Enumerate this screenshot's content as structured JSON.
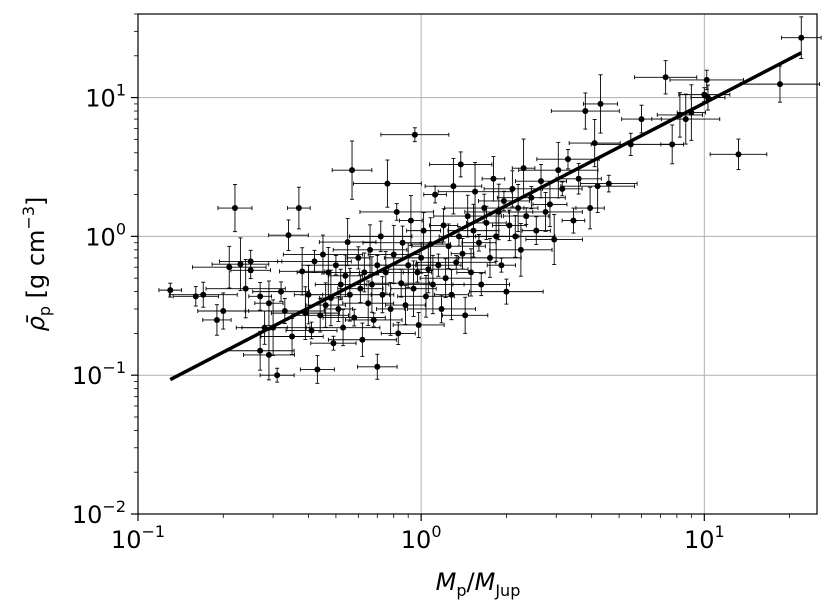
{
  "chart_data": {
    "type": "scatter",
    "title": "",
    "xlabel": {
      "main": "M",
      "sub": "p",
      "sep": "/",
      "main2": "M",
      "sub2": "Jup"
    },
    "ylabel": {
      "sym": "ρ̄",
      "sub": "p",
      "unit_open": " [g cm",
      "unit_sup": "−3",
      "unit_close": "]"
    },
    "xscale": "log",
    "yscale": "log",
    "xlim": [
      0.1,
      25
    ],
    "ylim": [
      0.01,
      40
    ],
    "grid": true,
    "x_ticks": [
      {
        "value": 0.1,
        "base": "10",
        "exp": "−1"
      },
      {
        "value": 1,
        "base": "10",
        "exp": "0"
      },
      {
        "value": 10,
        "base": "10",
        "exp": "1"
      }
    ],
    "y_ticks": [
      {
        "value": 0.01,
        "base": "10",
        "exp": "−2"
      },
      {
        "value": 0.1,
        "base": "10",
        "exp": "−1"
      },
      {
        "value": 1,
        "base": "10",
        "exp": "0"
      },
      {
        "value": 10,
        "base": "10",
        "exp": "1"
      }
    ],
    "fit_line": {
      "x": [
        0.13,
        22
      ],
      "y": [
        0.093,
        21
      ]
    },
    "points": [
      [
        0.13,
        0.41
      ],
      [
        0.16,
        0.37
      ],
      [
        0.17,
        0.38
      ],
      [
        0.19,
        0.25
      ],
      [
        0.2,
        0.29
      ],
      [
        0.21,
        0.6
      ],
      [
        0.22,
        1.6
      ],
      [
        0.23,
        0.63
      ],
      [
        0.24,
        0.42
      ],
      [
        0.25,
        0.57
      ],
      [
        0.25,
        0.66
      ],
      [
        0.27,
        0.37
      ],
      [
        0.28,
        0.22
      ],
      [
        0.27,
        0.15
      ],
      [
        0.29,
        0.33
      ],
      [
        0.29,
        0.14
      ],
      [
        0.3,
        0.22
      ],
      [
        0.31,
        0.1
      ],
      [
        0.32,
        0.4
      ],
      [
        0.33,
        0.29
      ],
      [
        0.34,
        1.02
      ],
      [
        0.35,
        0.19
      ],
      [
        0.37,
        1.6
      ],
      [
        0.38,
        0.56
      ],
      [
        0.39,
        0.28
      ],
      [
        0.4,
        0.38
      ],
      [
        0.41,
        0.21
      ],
      [
        0.42,
        0.66
      ],
      [
        0.43,
        0.11
      ],
      [
        0.44,
        0.27
      ],
      [
        0.45,
        0.74
      ],
      [
        0.46,
        0.32
      ],
      [
        0.47,
        0.55
      ],
      [
        0.48,
        0.36
      ],
      [
        0.49,
        0.17
      ],
      [
        0.5,
        0.62
      ],
      [
        0.51,
        0.3
      ],
      [
        0.52,
        0.45
      ],
      [
        0.53,
        0.22
      ],
      [
        0.54,
        0.52
      ],
      [
        0.55,
        0.91
      ],
      [
        0.56,
        0.38
      ],
      [
        0.57,
        3.0
      ],
      [
        0.58,
        0.26
      ],
      [
        0.6,
        0.7
      ],
      [
        0.61,
        0.42
      ],
      [
        0.62,
        0.18
      ],
      [
        0.63,
        0.55
      ],
      [
        0.65,
        0.33
      ],
      [
        0.66,
        0.8
      ],
      [
        0.67,
        0.45
      ],
      [
        0.68,
        0.25
      ],
      [
        0.7,
        0.62
      ],
      [
        0.7,
        0.115
      ],
      [
        0.72,
        1.0
      ],
      [
        0.73,
        0.38
      ],
      [
        0.75,
        0.55
      ],
      [
        0.76,
        2.4
      ],
      [
        0.78,
        0.3
      ],
      [
        0.8,
        0.74
      ],
      [
        0.82,
        1.5
      ],
      [
        0.83,
        0.2
      ],
      [
        0.85,
        0.46
      ],
      [
        0.86,
        0.9
      ],
      [
        0.88,
        0.32
      ],
      [
        0.9,
        0.62
      ],
      [
        0.92,
        1.3
      ],
      [
        0.94,
        0.42
      ],
      [
        0.95,
        5.4
      ],
      [
        0.97,
        0.55
      ],
      [
        0.98,
        0.23
      ],
      [
        1.0,
        0.7
      ],
      [
        1.02,
        1.1
      ],
      [
        1.04,
        0.37
      ],
      [
        1.06,
        0.58
      ],
      [
        1.08,
        0.88
      ],
      [
        1.1,
        0.45
      ],
      [
        1.12,
        2.0
      ],
      [
        1.15,
        0.62
      ],
      [
        1.18,
        0.3
      ],
      [
        1.2,
        1.2
      ],
      [
        1.22,
        0.5
      ],
      [
        1.25,
        0.85
      ],
      [
        1.28,
        0.38
      ],
      [
        1.3,
        2.3
      ],
      [
        1.33,
        0.65
      ],
      [
        1.36,
        1.0
      ],
      [
        1.38,
        3.3
      ],
      [
        1.4,
        0.75
      ],
      [
        1.43,
        0.27
      ],
      [
        1.46,
        1.4
      ],
      [
        1.5,
        0.55
      ],
      [
        1.53,
        1.1
      ],
      [
        1.55,
        2.1
      ],
      [
        1.6,
        0.9
      ],
      [
        1.63,
        0.45
      ],
      [
        1.67,
        1.6
      ],
      [
        1.7,
        1.25
      ],
      [
        1.75,
        0.7
      ],
      [
        1.8,
        2.6
      ],
      [
        1.84,
        1.0
      ],
      [
        1.88,
        1.5
      ],
      [
        1.92,
        0.62
      ],
      [
        1.96,
        1.8
      ],
      [
        2.0,
        0.4
      ],
      [
        2.05,
        1.2
      ],
      [
        2.1,
        2.2
      ],
      [
        2.15,
        1.0
      ],
      [
        2.2,
        1.6
      ],
      [
        2.25,
        0.8
      ],
      [
        2.3,
        3.1
      ],
      [
        2.35,
        1.4
      ],
      [
        2.45,
        1.9
      ],
      [
        2.55,
        1.1
      ],
      [
        2.65,
        2.5
      ],
      [
        2.75,
        1.5
      ],
      [
        2.85,
        1.7
      ],
      [
        2.95,
        0.95
      ],
      [
        3.05,
        3.0
      ],
      [
        3.15,
        2.2
      ],
      [
        3.3,
        3.6
      ],
      [
        3.45,
        1.3
      ],
      [
        3.6,
        2.6
      ],
      [
        3.8,
        8.0
      ],
      [
        3.95,
        1.6
      ],
      [
        4.1,
        4.7
      ],
      [
        4.2,
        2.3
      ],
      [
        4.3,
        9.0
      ],
      [
        4.6,
        2.4
      ],
      [
        5.5,
        4.6
      ],
      [
        6.0,
        7.0
      ],
      [
        7.3,
        14
      ],
      [
        7.7,
        4.6
      ],
      [
        8.2,
        7.5
      ],
      [
        8.6,
        7.0
      ],
      [
        9.0,
        7.8
      ],
      [
        10.0,
        10.5
      ],
      [
        10.2,
        13.4
      ],
      [
        10.3,
        10.0
      ],
      [
        13.2,
        3.9
      ],
      [
        18.5,
        12.5
      ],
      [
        22.0,
        27
      ]
    ]
  }
}
